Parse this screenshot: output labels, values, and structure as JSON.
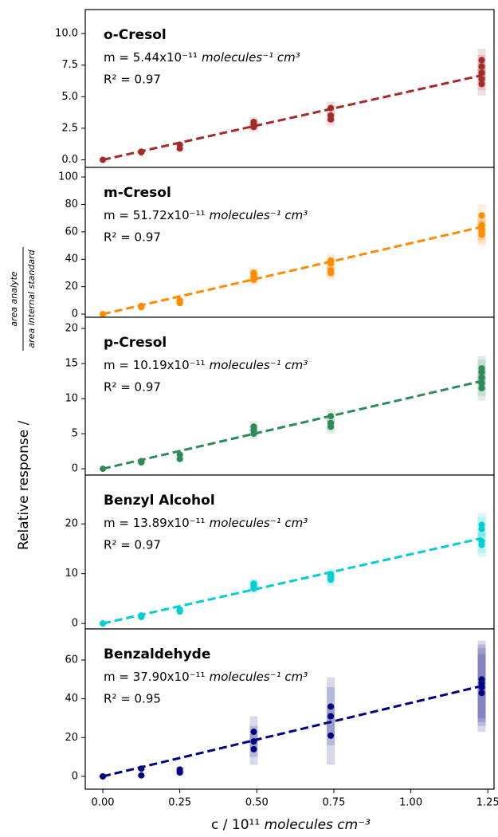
{
  "figure": {
    "ylabel": "Relative response /",
    "ylabel_fraction": {
      "numerator": "area analyte",
      "denominator": "area internal standard"
    },
    "xlabel": "c / 10¹¹",
    "xlabel_unit": "molecules cm⁻³"
  },
  "chart_data": [
    {
      "type": "scatter",
      "title": "o-Cresol",
      "slope": "m = 5.44x10⁻¹¹",
      "slope_unit": "molecules⁻¹ cm³",
      "r2": "R² = 0.97",
      "color": "#a52a2a",
      "x": [
        0,
        0.125,
        0.125,
        0.25,
        0.25,
        0.49,
        0.49,
        0.49,
        0.74,
        0.74,
        0.74,
        1.23,
        1.23,
        1.23,
        1.23,
        1.23
      ],
      "y": [
        0,
        0.6,
        0.65,
        0.9,
        1.2,
        2.6,
        2.8,
        3.0,
        3.2,
        3.5,
        4.1,
        6.0,
        6.4,
        6.9,
        7.4,
        7.9
      ],
      "yerr": [
        0.05,
        0.1,
        0.1,
        0.15,
        0.15,
        0.4,
        0.4,
        0.4,
        0.5,
        0.5,
        0.5,
        0.9,
        0.9,
        0.9,
        0.9,
        0.9
      ],
      "fit": {
        "x": [
          0,
          1.23
        ],
        "y": [
          0,
          6.69
        ]
      },
      "xlim": [
        -0.057,
        1.27
      ],
      "ylim": [
        -0.6,
        11.9
      ],
      "yticks": [
        {
          "value": 0,
          "label": "0.0"
        },
        2.5,
        {
          "value": 5,
          "label": "5.0"
        },
        7.5,
        {
          "value": 10,
          "label": "10.0"
        }
      ]
    },
    {
      "type": "scatter",
      "title": "m-Cresol",
      "slope": "m = 51.72x10⁻¹¹",
      "slope_unit": "molecules⁻¹ cm³",
      "r2": "R² = 0.97",
      "color": "#ff8c00",
      "x": [
        0,
        0.125,
        0.125,
        0.25,
        0.25,
        0.49,
        0.49,
        0.49,
        0.49,
        0.74,
        0.74,
        0.74,
        0.74,
        1.23,
        1.23,
        1.23,
        1.23,
        1.23
      ],
      "y": [
        0,
        5,
        6,
        8,
        10,
        25,
        27,
        29,
        30,
        30,
        32,
        37,
        39,
        58,
        60,
        62,
        65,
        72
      ],
      "yerr": [
        0.5,
        1,
        1,
        1.5,
        1.5,
        4,
        4,
        4,
        4,
        5,
        5,
        5,
        5,
        8,
        8,
        8,
        8,
        8
      ],
      "fit": {
        "x": [
          0,
          1.23
        ],
        "y": [
          0,
          63.6
        ]
      },
      "xlim": [
        -0.057,
        1.27
      ],
      "ylim": [
        -2.3,
        107
      ],
      "yticks": [
        0,
        20,
        40,
        60,
        80,
        100
      ]
    },
    {
      "type": "scatter",
      "title": "p-Cresol",
      "slope": "m = 10.19x10⁻¹¹",
      "slope_unit": "molecules⁻¹ cm³",
      "r2": "R² = 0.97",
      "color": "#2e8b57",
      "x": [
        0,
        0.125,
        0.125,
        0.25,
        0.25,
        0.49,
        0.49,
        0.49,
        0.74,
        0.74,
        0.74,
        1.23,
        1.23,
        1.23,
        1.23,
        1.23
      ],
      "y": [
        0,
        0.9,
        1.1,
        1.4,
        2.0,
        5.0,
        5.5,
        6.0,
        6.0,
        6.5,
        7.5,
        11.5,
        12.2,
        13.0,
        13.8,
        14.3
      ],
      "yerr": [
        0.1,
        0.2,
        0.2,
        0.3,
        0.3,
        0.8,
        0.8,
        0.8,
        1.0,
        1.0,
        1.0,
        1.8,
        1.8,
        1.8,
        1.8,
        1.8
      ],
      "fit": {
        "x": [
          0,
          1.23
        ],
        "y": [
          0,
          12.5
        ]
      },
      "xlim": [
        -0.057,
        1.27
      ],
      "ylim": [
        -0.9,
        21.6
      ],
      "yticks": [
        0,
        5,
        10,
        15,
        20
      ]
    },
    {
      "type": "scatter",
      "title": "Benzyl Alcohol",
      "slope": "m = 13.89x10⁻¹¹",
      "slope_unit": "molecules⁻¹ cm³",
      "r2": "R² = 0.97",
      "color": "#00ced1",
      "x": [
        0,
        0.125,
        0.125,
        0.25,
        0.25,
        0.49,
        0.49,
        0.49,
        0.74,
        0.74,
        0.74,
        1.23,
        1.23,
        1.23,
        1.23
      ],
      "y": [
        0,
        1.3,
        1.6,
        2.4,
        2.8,
        7.0,
        7.6,
        8.0,
        8.8,
        9.3,
        9.9,
        15.8,
        16.5,
        19.0,
        19.8
      ],
      "yerr": [
        0.2,
        0.3,
        0.3,
        0.4,
        0.4,
        1.0,
        1.0,
        1.0,
        1.2,
        1.2,
        1.2,
        2.4,
        2.4,
        2.4,
        2.4
      ],
      "fit": {
        "x": [
          0,
          1.23
        ],
        "y": [
          0,
          17.1
        ]
      },
      "xlim": [
        -0.057,
        1.27
      ],
      "ylim": [
        -1.1,
        29.8
      ],
      "yticks": [
        0,
        10,
        20
      ]
    },
    {
      "type": "scatter",
      "title": "Benzaldehyde",
      "slope": "m = 37.90x10⁻¹¹",
      "slope_unit": "molecules⁻¹ cm³",
      "r2": "R² = 0.95",
      "color": "#000080",
      "x": [
        0,
        0.125,
        0.125,
        0.25,
        0.25,
        0.49,
        0.49,
        0.49,
        0.74,
        0.74,
        0.74,
        1.23,
        1.23,
        1.23,
        1.23
      ],
      "y": [
        0,
        0.5,
        4,
        2,
        3.5,
        14,
        18,
        23,
        21,
        31,
        36,
        43,
        46,
        48,
        50
      ],
      "yerr": [
        0.5,
        1,
        1,
        1.5,
        1.5,
        8,
        8,
        8,
        15,
        15,
        15,
        20,
        20,
        20,
        20
      ],
      "fit": {
        "x": [
          0,
          1.23
        ],
        "y": [
          0,
          46.6
        ]
      },
      "xlim": [
        -0.057,
        1.27
      ],
      "ylim": [
        -6.6,
        76
      ],
      "yticks": [
        0,
        20,
        40,
        60
      ],
      "xticks": [
        {
          "value": 0,
          "label": "0.00"
        },
        0.25,
        {
          "value": 0.5,
          "label": "0.50"
        },
        0.75,
        {
          "value": 1,
          "label": "1.00"
        },
        1.25
      ]
    }
  ]
}
